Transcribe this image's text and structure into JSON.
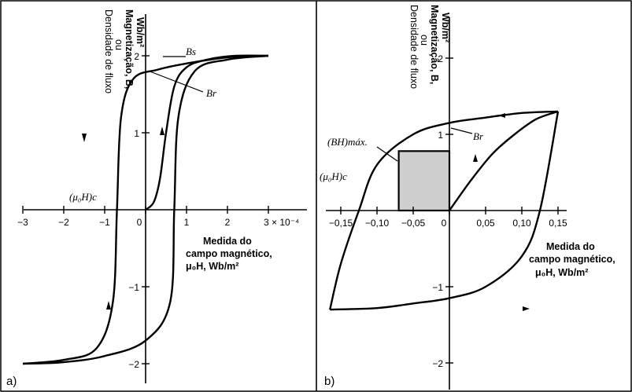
{
  "panel_a": {
    "label": "a)",
    "y_title": [
      "Densidade de fluxo",
      "ou"
    ],
    "y_title_bold": [
      "Magnetização, B,",
      "Wb/m²"
    ],
    "x_title_bold": [
      "Medida do",
      "campo magnético,",
      "μ₀H, Wb/m²"
    ],
    "annotations": {
      "bs": "Bs",
      "br": "Br",
      "hc": "(μ₀H)c"
    },
    "x_ticks": [
      "−3",
      "−2",
      "−1",
      "0",
      "1",
      "2",
      "3 × 10⁻⁴"
    ],
    "y_ticks": [
      "2",
      "1",
      "−1",
      "−2"
    ]
  },
  "panel_b": {
    "label": "b)",
    "y_title": [
      "Densidade de fluxo",
      "ou"
    ],
    "y_title_bold": [
      "Magnetização, B,",
      "Wb/m²"
    ],
    "x_title_bold": [
      "Medida do",
      "campo magnético,",
      "μ₀H, Wb/m²"
    ],
    "annotations": {
      "bhmax": "(BH)máx.",
      "br": "Br",
      "hc": "(μ₀H)c"
    },
    "x_ticks": [
      "−0,15",
      "−0,10",
      "−0,05",
      "0",
      "0,05",
      "0,10",
      "0,15"
    ],
    "y_ticks": [
      "2",
      "1",
      "−1",
      "−2"
    ]
  },
  "chart_data": [
    {
      "type": "line",
      "panel": "a",
      "x_unit_multiplier": 0.0001,
      "xlim": [
        -3.3,
        3.3
      ],
      "ylim": [
        -2.4,
        2.4
      ],
      "series": [
        {
          "x": [
            3.0,
            2.0,
            1.0,
            0.3,
            -0.3,
            -0.6,
            -0.7,
            -0.8,
            -1.2,
            -2.0,
            -3.0
          ],
          "y": [
            2.0,
            1.98,
            1.9,
            1.82,
            1.7,
            1.2,
            0.0,
            -1.2,
            -1.8,
            -1.95,
            -2.0
          ]
        },
        {
          "x": [
            -3.0,
            -2.0,
            -1.0,
            0.0,
            0.6,
            0.7,
            0.8,
            1.2,
            2.0,
            3.0
          ],
          "y": [
            -2.0,
            -1.98,
            -1.9,
            -1.7,
            -1.2,
            0.0,
            1.2,
            1.8,
            1.95,
            2.0
          ]
        },
        {
          "x": [
            0.0,
            0.2,
            0.35,
            0.5,
            0.7,
            1.0,
            1.5,
            2.2,
            3.0
          ],
          "y": [
            0.0,
            0.1,
            0.4,
            1.0,
            1.6,
            1.85,
            1.95,
            2.0,
            2.0
          ]
        }
      ]
    },
    {
      "type": "line",
      "panel": "b",
      "xlim": [
        -0.165,
        0.165
      ],
      "ylim": [
        -2.2,
        2.2
      ],
      "series": [
        {
          "x": [
            0.15,
            0.1,
            0.05,
            0.0,
            -0.05,
            -0.1,
            -0.125,
            -0.15,
            -0.165
          ],
          "y": [
            1.3,
            1.28,
            1.22,
            1.15,
            1.0,
            0.6,
            0.0,
            -0.7,
            -1.3
          ]
        },
        {
          "x": [
            -0.165,
            -0.1,
            -0.05,
            0.0,
            0.05,
            0.1,
            0.125,
            0.15
          ],
          "y": [
            -1.3,
            -1.28,
            -1.22,
            -1.15,
            -1.0,
            -0.6,
            0.0,
            1.3
          ]
        },
        {
          "x": [
            0.0,
            0.03,
            0.06,
            0.09,
            0.12,
            0.15
          ],
          "y": [
            0.0,
            0.4,
            0.75,
            1.0,
            1.2,
            1.3
          ]
        }
      ],
      "shaded_rect": {
        "x": [
          -0.07,
          0.0
        ],
        "y": [
          0.0,
          0.78
        ]
      }
    }
  ]
}
